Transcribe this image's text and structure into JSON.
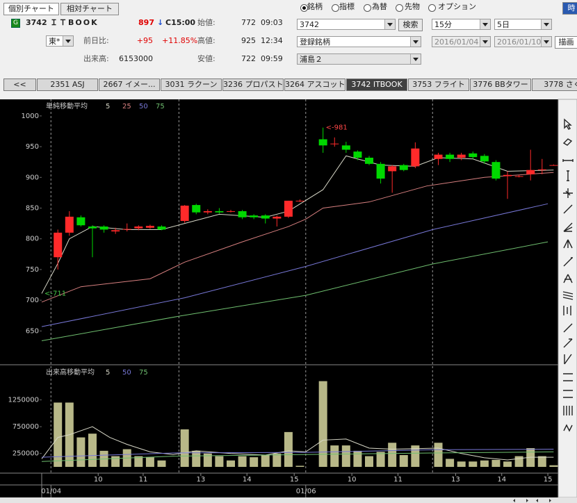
{
  "mode_buttons": [
    "個別チャート",
    "相対チャート"
  ],
  "quote": {
    "badge": "G",
    "code": "3742",
    "name": "ＩＴBOOK",
    "price": 897,
    "arrow": "↓",
    "time": "C15:00",
    "open_label": "始値:",
    "open": 772,
    "open_time": "09:03",
    "market": "東*",
    "change_label": "前日比:",
    "change": "+95",
    "change_pct": "+11.85%",
    "high_label": "高値:",
    "high": 925,
    "high_time": "12:34",
    "volume_label": "出来高:",
    "volume": 6153000,
    "low_label": "安値:",
    "low": 722,
    "low_time": "09:59"
  },
  "search": {
    "modes": [
      "銘柄",
      "指標",
      "為替",
      "先物",
      "オプション"
    ],
    "selected": 0,
    "symbol": "3742",
    "search_button": "検索",
    "list": "登録銘柄",
    "group": "浦島２",
    "corner_button": "時"
  },
  "period": {
    "interval": "15分",
    "span": "5日",
    "from": "2016/01/04",
    "to": "2016/01/10",
    "draw_button": "描画"
  },
  "tabs": {
    "items": [
      "<<",
      "2351 ASJ",
      "2667 イメー...",
      "3031 ラクーン",
      "3236 プロパスト",
      "3264 アスコット",
      "3742 ITBOOK",
      "3753 フライト",
      "3776 BBタワー",
      "3778 さく"
    ],
    "selected": 6
  },
  "chart_data": [
    {
      "type": "candlestick",
      "title": "単純移動平均",
      "x": [
        0,
        1,
        2,
        3,
        4,
        5,
        6,
        7,
        8,
        9,
        11,
        12,
        13,
        14,
        15,
        16,
        17,
        18,
        19,
        20,
        21,
        23,
        24,
        25,
        26,
        27,
        28,
        29,
        30,
        31,
        33,
        34,
        35,
        36,
        37,
        38,
        39,
        40,
        41,
        42,
        43
      ],
      "open": [
        770,
        810,
        835,
        820,
        820,
        812,
        815,
        817,
        818,
        820,
        829,
        855,
        843,
        845,
        844,
        845,
        838,
        838,
        833,
        836,
        861,
        962,
        954,
        952,
        942,
        932,
        922,
        910,
        920,
        918,
        930,
        937,
        932,
        939,
        935,
        925,
        902,
        901,
        905,
        912,
        919
      ],
      "high": [
        815,
        845,
        838,
        822,
        822,
        818,
        825,
        822,
        823,
        822,
        855,
        857,
        848,
        850,
        847,
        847,
        840,
        840,
        838,
        862,
        864,
        981,
        965,
        958,
        944,
        935,
        925,
        920,
        922,
        957,
        940,
        940,
        940,
        942,
        938,
        928,
        910,
        904,
        945,
        930,
        921
      ],
      "low": [
        750,
        805,
        820,
        770,
        810,
        808,
        812,
        814,
        816,
        814,
        826,
        840,
        840,
        841,
        843,
        832,
        832,
        825,
        820,
        834,
        860,
        940,
        950,
        940,
        928,
        920,
        890,
        875,
        910,
        915,
        920,
        925,
        928,
        930,
        922,
        895,
        865,
        900,
        895,
        905,
        919
      ],
      "close": [
        810,
        836,
        822,
        817,
        815,
        814,
        816,
        820,
        821,
        815,
        854,
        843,
        845,
        843,
        845,
        835,
        835,
        833,
        836,
        862,
        862,
        952,
        955,
        945,
        932,
        922,
        898,
        918,
        912,
        947,
        937,
        930,
        937,
        933,
        926,
        898,
        904,
        902,
        912,
        913,
        920
      ],
      "up_color": "#ff2a2a",
      "down_color": "#00d800",
      "series": [
        {
          "name": "5",
          "color": "#d8d8c8",
          "x": [
            -1.4,
            0,
            1,
            3,
            6,
            9,
            11,
            14,
            18,
            20,
            23,
            25,
            28,
            31,
            33,
            36,
            39,
            43
          ],
          "values": [
            711,
            760,
            800,
            820,
            815,
            815,
            825,
            840,
            835,
            845,
            880,
            935,
            920,
            918,
            932,
            930,
            910,
            912
          ]
        },
        {
          "name": "25",
          "color": "#d88080",
          "x": [
            -1.4,
            2,
            8,
            11,
            16,
            20,
            21.5,
            23,
            27,
            32,
            37,
            43
          ],
          "values": [
            697,
            722,
            735,
            762,
            795,
            820,
            832,
            850,
            860,
            886,
            900,
            908
          ]
        },
        {
          "name": "50",
          "color": "#7878d8",
          "x": [
            -1.4,
            11,
            21.5,
            32.5,
            42.5
          ],
          "values": [
            657,
            704,
            755,
            815,
            857
          ]
        },
        {
          "name": "75",
          "color": "#70c070",
          "x": [
            -1.4,
            10.5,
            21.5,
            32.5,
            42.5
          ],
          "values": [
            634,
            674,
            708,
            759,
            795
          ]
        }
      ],
      "annotations": [
        {
          "text": "<-981",
          "x": 23,
          "y": 981,
          "color": "#ff4848"
        },
        {
          "text": "<-711",
          "x": -1.4,
          "y": 711,
          "color": "#48c848"
        }
      ],
      "xlim": [
        -1.4,
        43.4
      ],
      "ylim": [
        595,
        1027
      ],
      "yticks": [
        650,
        700,
        750,
        800,
        850,
        900,
        950,
        1000
      ],
      "xgrid": [
        -0.6,
        10.5,
        21.5,
        32.5
      ]
    },
    {
      "type": "bar",
      "title": "出来高移動平均",
      "color": "#b8b888",
      "x": [
        0,
        1,
        2,
        3,
        4,
        5,
        6,
        7,
        8,
        9,
        11,
        12,
        13,
        14,
        15,
        16,
        17,
        18,
        19,
        20,
        21,
        23,
        24,
        25,
        26,
        27,
        28,
        29,
        30,
        31,
        33,
        34,
        35,
        36,
        37,
        38,
        39,
        40,
        41,
        42,
        43
      ],
      "values": [
        1200000,
        1200000,
        550000,
        620000,
        300000,
        200000,
        330000,
        200000,
        180000,
        120000,
        700000,
        300000,
        250000,
        200000,
        120000,
        200000,
        180000,
        220000,
        250000,
        650000,
        20000,
        1600000,
        400000,
        400000,
        300000,
        200000,
        280000,
        450000,
        220000,
        400000,
        450000,
        150000,
        100000,
        100000,
        120000,
        130000,
        100000,
        200000,
        350000,
        200000,
        30000
      ],
      "series": [
        {
          "name": "5",
          "color": "#d8d8c8",
          "x": [
            -1.4,
            0,
            1,
            3,
            4.5,
            6,
            8,
            10,
            12,
            15,
            18,
            20,
            21.5,
            23,
            25,
            27,
            29,
            31,
            33,
            35,
            37,
            39,
            41,
            43
          ],
          "values": [
            150000,
            550000,
            600000,
            750000,
            550000,
            420000,
            280000,
            230000,
            300000,
            250000,
            220000,
            300000,
            280000,
            500000,
            520000,
            350000,
            330000,
            340000,
            350000,
            250000,
            170000,
            130000,
            180000,
            180000
          ]
        },
        {
          "name": "50",
          "color": "#7878d8",
          "x": [
            -1.4,
            10,
            21.5,
            32.5,
            43
          ],
          "values": [
            180000,
            260000,
            270000,
            320000,
            330000
          ]
        },
        {
          "name": "75",
          "color": "#70c070",
          "x": [
            -1.4,
            10,
            21.5,
            32.5,
            43
          ],
          "values": [
            100000,
            200000,
            230000,
            260000,
            280000
          ]
        }
      ],
      "xlim": [
        -1.4,
        43.4
      ],
      "ylim": [
        0,
        1880000
      ],
      "yticks": [
        250000,
        750000,
        1250000
      ],
      "xticks": [
        {
          "value": 3.5,
          "label": "10"
        },
        {
          "value": 7.4,
          "label": "11"
        },
        {
          "value": 12.4,
          "label": "13"
        },
        {
          "value": 16.4,
          "label": "14"
        },
        {
          "value": 20.5,
          "label": "15"
        },
        {
          "value": 25.5,
          "label": "10"
        },
        {
          "value": 29.5,
          "label": "11"
        },
        {
          "value": 34.5,
          "label": "13"
        },
        {
          "value": 38.5,
          "label": "14"
        },
        {
          "value": 42.5,
          "label": "15"
        }
      ],
      "date_labels": [
        {
          "value": -0.6,
          "label": "01/04"
        },
        {
          "value": 21.5,
          "label": "01/06"
        }
      ]
    }
  ]
}
